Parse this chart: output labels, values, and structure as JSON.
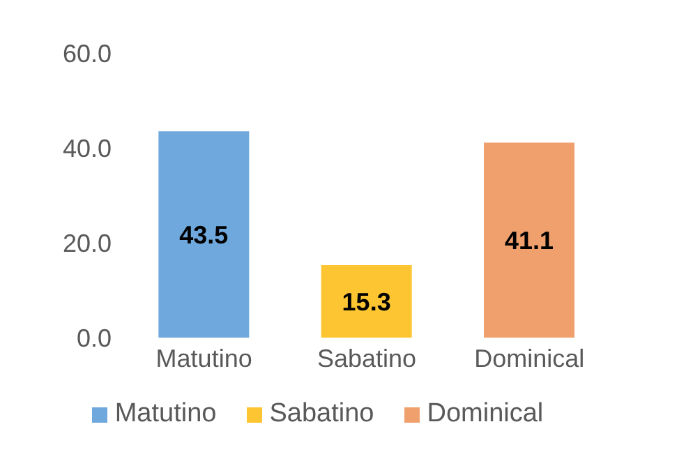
{
  "chart_data": {
    "type": "bar",
    "categories": [
      "Matutino",
      "Sabatino",
      "Dominical"
    ],
    "series": [
      {
        "name": "Matutino",
        "color": "#6fa8dc",
        "values": [
          43.5,
          null,
          null
        ]
      },
      {
        "name": "Sabatino",
        "color": "#fcc531",
        "values": [
          null,
          15.3,
          null
        ]
      },
      {
        "name": "Dominical",
        "color": "#f0a06c",
        "values": [
          null,
          null,
          41.1
        ]
      }
    ],
    "stacked": true,
    "ylim": [
      0,
      60
    ],
    "yticks": [
      {
        "value": 0,
        "label": "0.0"
      },
      {
        "value": 20,
        "label": "20.0"
      },
      {
        "value": 40,
        "label": "40.0"
      },
      {
        "value": 60,
        "label": "60.0"
      }
    ],
    "data_labels": true,
    "legend": "bottom",
    "grid": false
  }
}
